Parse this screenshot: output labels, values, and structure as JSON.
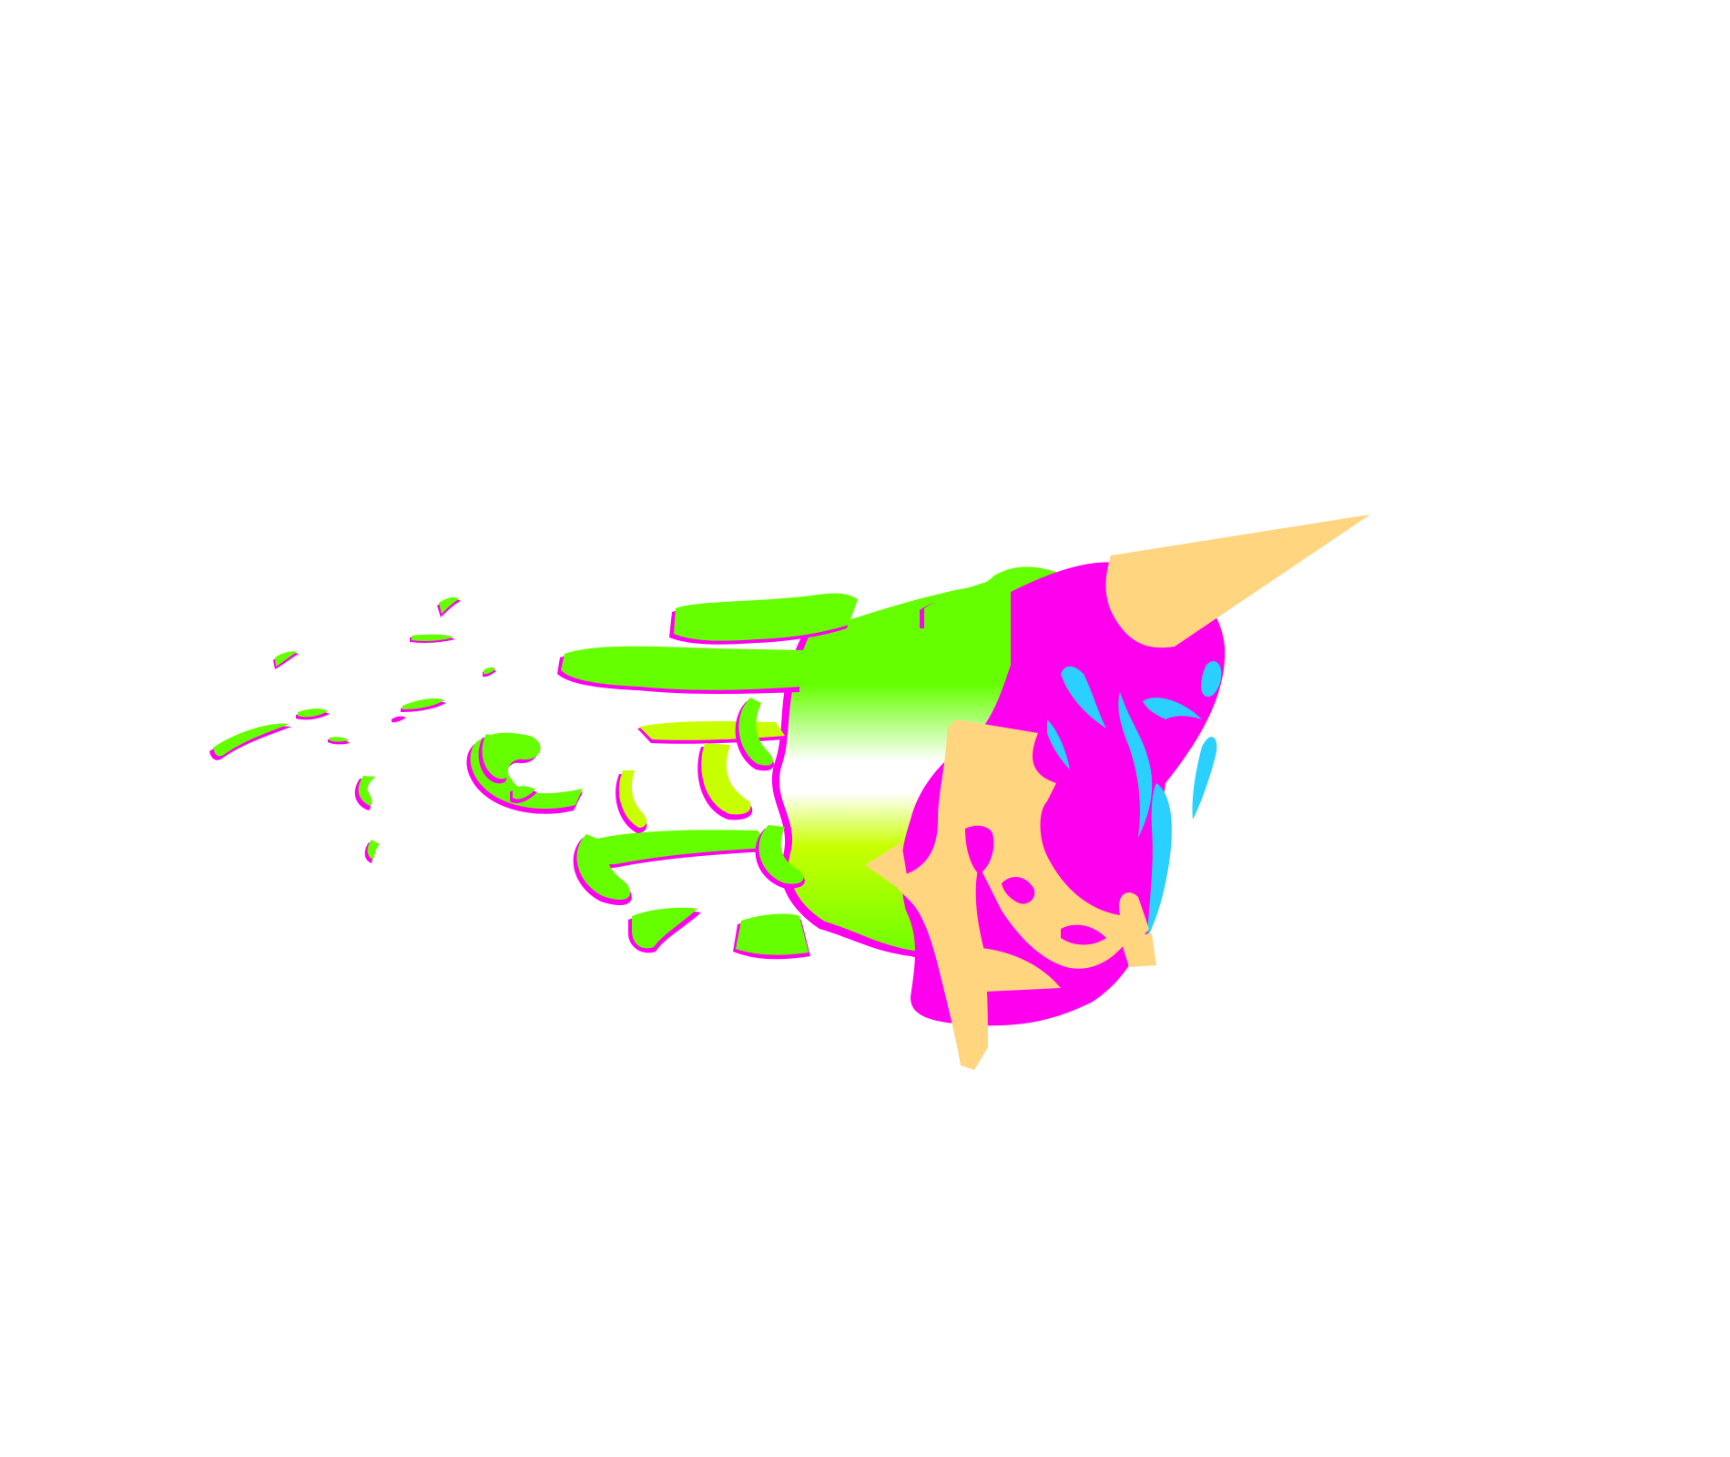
{
  "artwork": {
    "kind": "abstract-illustration",
    "subject": "ice-cream-cone-dissolving-into-splashes",
    "colors": {
      "background": "#ffffff",
      "slime_green": "#66ff00",
      "lime_yellow": "#c8ff00",
      "magenta": "#ff00ee",
      "cyan": "#2ad0ff",
      "cone_tan": "#ffd580"
    }
  }
}
